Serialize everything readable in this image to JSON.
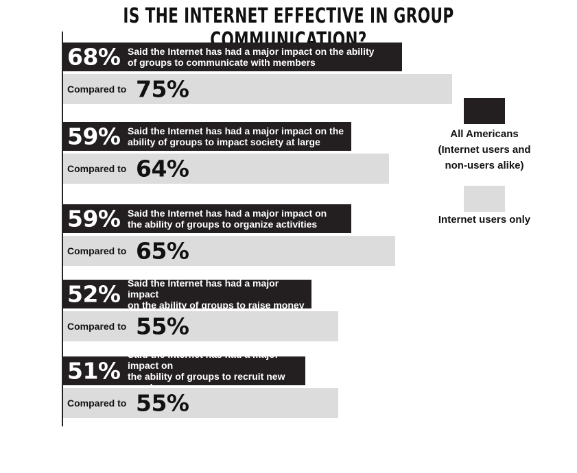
{
  "chart_data": {
    "type": "bar",
    "title": "Is the Internet effective in group communication?",
    "categories": [
      "Said the Internet has had a major impact on the ability\nof groups to communicate with members",
      "Said the Internet has had a major impact on the\nability of groups to impact society at large",
      "Said the Internet has had a major impact on\nthe ability of groups to organize activities",
      "Said the Internet has had a major impact\non the ability of groups to raise money",
      "Said the Internet has had a major impact on\nthe ability of groups to recruit new members"
    ],
    "compared_label": "Compared to",
    "series": [
      {
        "name": "All Americans\n(Internet users and\nnon-users alike)",
        "color": "#231f20",
        "values": [
          68,
          59,
          59,
          52,
          51
        ]
      },
      {
        "name": "Internet users only",
        "color": "#dcdcdc",
        "values": [
          75,
          64,
          65,
          55,
          55
        ]
      }
    ],
    "value_format": "percent",
    "legend": "right"
  }
}
